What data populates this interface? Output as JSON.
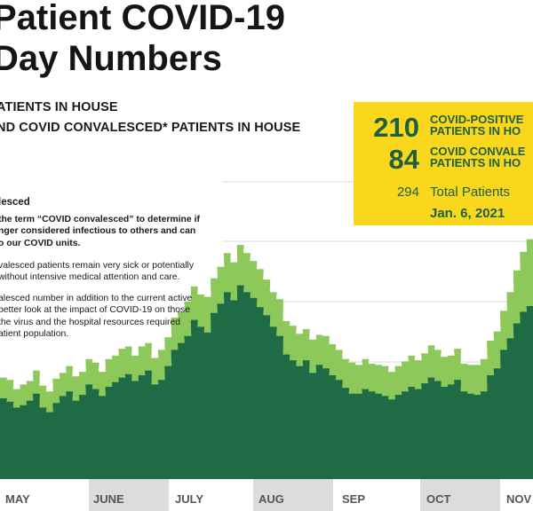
{
  "title_lines": [
    "Patient COVID-19",
    "Day Numbers"
  ],
  "legend": {
    "line1": "ATIENTS IN HOUSE",
    "line2": "ND COVID CONVALESCED* PATIENTS IN HOUSE"
  },
  "note": {
    "title": "lesced",
    "paragraphs": [
      {
        "bold": true,
        "lines": [
          "the term “COVID convalesced” to determine if",
          "nger considered infectious to others and can",
          "o our COVID units."
        ]
      },
      {
        "bold": false,
        "lines": [
          "valesced patients remain very sick or potentially",
          "without intensive medical attention and care."
        ]
      },
      {
        "bold": false,
        "lines": [
          "alesced number in addition to the current active",
          "better look at the impact of COVID-19 on those",
          "the virus and the hospital resources required",
          "atient population."
        ]
      }
    ]
  },
  "summary": {
    "positive_count": "210",
    "positive_label": "COVID-POSITIVE\nPATIENTS IN HO",
    "convalesced_count": "84",
    "convalesced_label": "COVID CONVALE\nPATIENTS IN HO",
    "total_count": "294",
    "total_label": "Total Patients",
    "date": "Jan. 6, 2021"
  },
  "colors": {
    "active_series": "#1e6b45",
    "convalesced_series": "#8dc85a",
    "summary_bg": "#f9d71c",
    "summary_text": "#1f5f3c",
    "month_band": "#dcdcdc",
    "gridline": "#d8d8d8"
  },
  "chart_data": {
    "type": "area",
    "stacked": true,
    "x_axis_months": [
      "MAY",
      "JUNE",
      "JULY",
      "AUG",
      "SEP",
      "OCT",
      "NOV"
    ],
    "ylim": [
      0,
      300
    ],
    "grid": "horizontal",
    "series": [
      {
        "series_key": "active",
        "values": [
          70,
          67,
          62,
          64,
          68,
          74,
          62,
          58,
          66,
          72,
          76,
          68,
          73,
          82,
          78,
          72,
          80,
          84,
          88,
          91,
          85,
          90,
          94,
          82,
          86,
          98,
          112,
          118,
          124,
          138,
          132,
          127,
          144,
          152,
          162,
          155,
          168,
          162,
          157,
          149,
          142,
          132,
          124,
          108,
          103,
          98,
          103,
          92,
          99,
          96,
          90,
          86,
          79,
          74,
          74,
          78,
          76,
          74,
          72,
          69,
          73,
          76,
          80,
          78,
          83,
          88,
          85,
          80,
          82,
          86,
          76,
          74,
          73,
          76,
          90,
          96,
          112,
          122,
          135,
          145,
          150
        ]
      },
      {
        "series_key": "convalesced",
        "values": [
          18,
          19,
          16,
          18,
          17,
          20,
          19,
          18,
          21,
          20,
          22,
          21,
          20,
          22,
          23,
          21,
          24,
          23,
          25,
          24,
          22,
          25,
          24,
          23,
          26,
          25,
          28,
          27,
          30,
          29,
          28,
          31,
          30,
          32,
          34,
          33,
          35,
          34,
          32,
          33,
          31,
          30,
          32,
          29,
          30,
          28,
          27,
          29,
          26,
          28,
          27,
          26,
          25,
          27,
          25,
          26,
          24,
          25,
          26,
          24,
          25,
          26,
          27,
          25,
          26,
          28,
          27,
          26,
          25,
          27,
          24,
          25,
          26,
          28,
          30,
          32,
          34,
          40,
          46,
          52,
          58
        ]
      }
    ]
  }
}
